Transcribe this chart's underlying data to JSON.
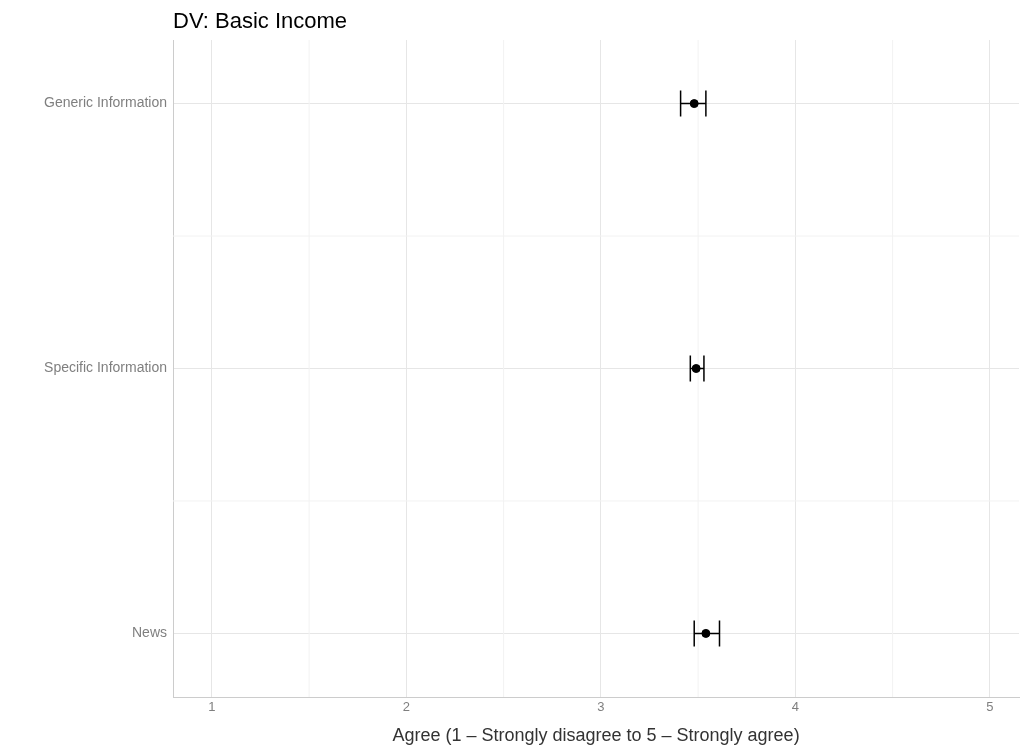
{
  "chart_data": {
    "type": "scatter",
    "title": "DV: Basic Income",
    "xlabel": "Agree (1 – Strongly disagree to 5 – Strongly agree)",
    "categories": [
      "Generic Information",
      "Specific Information",
      "News"
    ],
    "series": [
      {
        "color": "#000000",
        "values": [
          3.48,
          3.49,
          3.54
        ],
        "errors": [
          [
            3.41,
            3.54
          ],
          [
            3.46,
            3.53
          ],
          [
            3.48,
            3.61
          ]
        ]
      }
    ],
    "orientation": "horizontal",
    "xlim": [
      0.8,
      5.15
    ],
    "xticks": [
      1,
      2,
      3,
      4,
      5
    ],
    "grid": true,
    "legend": false,
    "marker": "circle"
  }
}
